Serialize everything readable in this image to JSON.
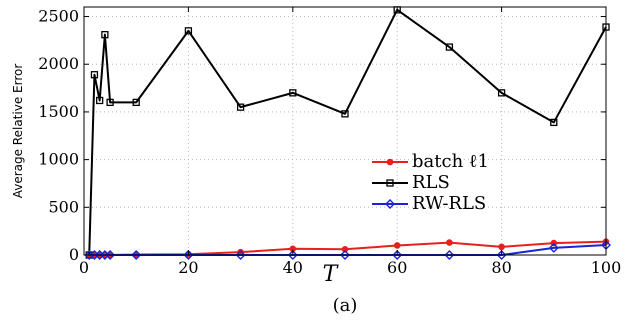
{
  "chart_data": {
    "type": "line",
    "xlabel": "T",
    "ylabel": "Average Relative Error",
    "caption": "(a)",
    "xlim": [
      0,
      100
    ],
    "ylim": [
      0,
      2600
    ],
    "xticks": [
      "0",
      "20",
      "40",
      "60",
      "80",
      "100"
    ],
    "yticks": [
      "0",
      "500",
      "1000",
      "1500",
      "2000",
      "2500"
    ],
    "grid": true,
    "legend_position": "center-right",
    "series": [
      {
        "name": "batch ℓ1",
        "color": "#e8201a",
        "marker": "dot",
        "x": [
          1,
          2,
          3,
          4,
          5,
          10,
          20,
          30,
          40,
          50,
          60,
          70,
          80,
          90,
          100
        ],
        "y": [
          0,
          0,
          0,
          0,
          0,
          5,
          8,
          30,
          65,
          60,
          100,
          130,
          85,
          125,
          140
        ]
      },
      {
        "name": "RLS",
        "color": "#000000",
        "marker": "square",
        "x": [
          1,
          2,
          3,
          4,
          5,
          10,
          20,
          30,
          40,
          50,
          60,
          70,
          80,
          90,
          100
        ],
        "y": [
          0,
          1890,
          1620,
          2310,
          1600,
          1600,
          2350,
          1550,
          1700,
          1480,
          2570,
          2180,
          1700,
          1390,
          2390
        ]
      },
      {
        "name": "RW-RLS",
        "color": "#1a24d6",
        "marker": "diamond",
        "x": [
          1,
          2,
          3,
          4,
          5,
          10,
          20,
          30,
          40,
          50,
          60,
          70,
          80,
          90,
          100
        ],
        "y": [
          0,
          0,
          0,
          0,
          0,
          0,
          0,
          0,
          0,
          0,
          0,
          0,
          0,
          75,
          105
        ]
      }
    ]
  }
}
